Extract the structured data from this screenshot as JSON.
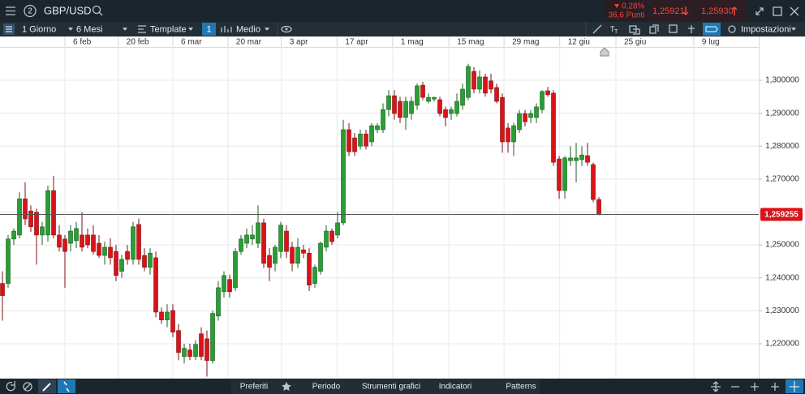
{
  "header": {
    "instrument_badge": "2",
    "symbol": "GBP/USD",
    "change_percent": "0,28%",
    "change_points": "36,6 Punti",
    "sell_price": "1,25921",
    "buy_price": "1,25930"
  },
  "toolbar": {
    "interval": "1 Giorno",
    "range": "6 Mesi",
    "template": "Template",
    "indicator_count": "1",
    "chart_style": "Medio",
    "settings": "Impostazioni"
  },
  "bottom_bar": {
    "tabs": [
      "Preferiti",
      "Periodo",
      "Strumenti grafici",
      "Indicatori",
      "Patterns"
    ]
  },
  "chart_data": {
    "type": "candlestick",
    "up_color": "#2a9d34",
    "down_color": "#d7141a",
    "open": [
      1.2383,
      1.2383,
      1.2518,
      1.253,
      1.264,
      1.2603,
      1.2599,
      1.253,
      1.253,
      1.2665,
      1.253,
      1.2518,
      1.2505,
      1.2513,
      1.253,
      1.253,
      1.253,
      1.2505,
      1.2468,
      1.2493,
      1.248,
      1.242,
      1.248,
      1.2456,
      1.2562,
      1.2468,
      1.2432,
      1.2461,
      1.2296,
      1.2272,
      1.2301,
      1.224,
      1.2161,
      1.2181,
      1.2161,
      1.223,
      1.2215,
      1.2149,
      1.2284,
      1.2358,
      1.2395,
      1.237,
      1.248,
      1.2505,
      1.2518,
      1.2505,
      1.2567,
      1.2468,
      1.2444,
      1.248,
      1.2542,
      1.2493,
      1.2444,
      1.2485,
      1.2475,
      1.2383,
      1.242,
      1.2493,
      1.2542,
      1.253,
      1.2567,
      1.285,
      1.2825,
      1.28,
      1.2837,
      1.2813,
      1.285,
      1.285,
      1.2911,
      1.2953,
      1.2936,
      1.2887,
      1.2899,
      1.2924,
      1.2985,
      1.2936,
      1.2943,
      1.2941,
      1.2911,
      1.2899,
      1.2899,
      1.2924,
      1.2948,
      1.3027,
      1.2973,
      1.301,
      1.2998,
      1.2978,
      1.2948,
      1.2855,
      1.2813,
      1.285,
      1.2899,
      1.2887,
      1.2887,
      1.2911,
      1.2968,
      1.2961,
      1.2761,
      1.2665,
      1.2756,
      1.2756,
      1.2759,
      1.2771,
      1.2744,
      1.2638
    ],
    "high": [
      1.242,
      1.253,
      1.255,
      1.266,
      1.269,
      1.262,
      1.261,
      1.257,
      1.268,
      1.271,
      1.256,
      1.253,
      1.256,
      1.257,
      1.26,
      1.255,
      1.256,
      1.253,
      1.251,
      1.252,
      1.25,
      1.247,
      1.25,
      1.257,
      1.258,
      1.249,
      1.249,
      1.248,
      1.231,
      1.232,
      1.232,
      1.226,
      1.22,
      1.22,
      1.221,
      1.225,
      1.224,
      1.23,
      1.239,
      1.242,
      1.241,
      1.249,
      1.253,
      1.255,
      1.256,
      1.262,
      1.258,
      1.249,
      1.25,
      1.257,
      1.256,
      1.251,
      1.252,
      1.25,
      1.249,
      1.244,
      1.251,
      1.256,
      1.255,
      1.26,
      1.288,
      1.287,
      1.284,
      1.285,
      1.285,
      1.287,
      1.287,
      1.293,
      1.297,
      1.297,
      1.295,
      1.295,
      1.295,
      1.299,
      1.2995,
      1.296,
      1.295,
      1.295,
      1.292,
      1.292,
      1.296,
      1.299,
      1.305,
      1.304,
      1.303,
      1.302,
      1.302,
      1.299,
      1.296,
      1.287,
      1.287,
      1.291,
      1.291,
      1.291,
      1.293,
      1.297,
      1.298,
      1.297,
      1.277,
      1.277,
      1.28,
      1.281,
      1.28,
      1.281,
      1.275,
      1.2645
    ],
    "low": [
      1.227,
      1.237,
      1.25,
      1.252,
      1.256,
      1.254,
      1.244,
      1.25,
      1.251,
      1.252,
      1.248,
      1.237,
      1.248,
      1.249,
      1.248,
      1.249,
      1.247,
      1.246,
      1.244,
      1.244,
      1.239,
      1.24,
      1.244,
      1.244,
      1.244,
      1.242,
      1.241,
      1.228,
      1.226,
      1.225,
      1.222,
      1.215,
      1.214,
      1.215,
      1.215,
      1.215,
      1.21,
      1.214,
      1.227,
      1.234,
      1.234,
      1.236,
      1.247,
      1.249,
      1.25,
      1.249,
      1.243,
      1.239,
      1.242,
      1.246,
      1.246,
      1.242,
      1.243,
      1.246,
      1.236,
      1.237,
      1.241,
      1.248,
      1.25,
      1.252,
      1.256,
      1.277,
      1.277,
      1.279,
      1.279,
      1.28,
      1.284,
      1.284,
      1.289,
      1.288,
      1.287,
      1.285,
      1.288,
      1.291,
      1.294,
      1.293,
      1.2935,
      1.289,
      1.286,
      1.288,
      1.289,
      1.291,
      1.294,
      1.296,
      1.296,
      1.295,
      1.296,
      1.293,
      1.278,
      1.278,
      1.277,
      1.284,
      1.286,
      1.287,
      1.287,
      1.29,
      1.295,
      1.274,
      1.264,
      1.264,
      1.274,
      1.269,
      1.274,
      1.274,
      1.263,
      1.259
    ],
    "close": [
      1.2346,
      1.2518,
      1.2542,
      1.264,
      1.2579,
      1.2555,
      1.253,
      1.2555,
      1.2665,
      1.253,
      1.2493,
      1.248,
      1.2542,
      1.255,
      1.2493,
      1.25,
      1.248,
      1.2468,
      1.2493,
      1.2461,
      1.2407,
      1.2456,
      1.2456,
      1.2555,
      1.2456,
      1.2432,
      1.2475,
      1.2296,
      1.2272,
      1.2296,
      1.2235,
      1.2173,
      1.2186,
      1.2161,
      1.2198,
      1.2161,
      1.2149,
      1.2292,
      1.237,
      1.2407,
      1.2358,
      1.248,
      1.2518,
      1.253,
      1.253,
      1.2567,
      1.2444,
      1.2432,
      1.2493,
      1.256,
      1.248,
      1.2444,
      1.2493,
      1.2475,
      1.2378,
      1.2432,
      1.2505,
      1.2542,
      1.251,
      1.2567,
      1.285,
      1.2783,
      1.2783,
      1.2837,
      1.28,
      1.2862,
      1.2862,
      1.2911,
      1.2953,
      1.2899,
      1.2887,
      1.2936,
      1.2936,
      1.2983,
      1.2948,
      1.2948,
      1.2948,
      1.2899,
      1.2887,
      1.2911,
      1.2936,
      1.2973,
      1.3042,
      1.2973,
      1.301,
      1.2961,
      1.2973,
      1.2936,
      1.2813,
      1.2813,
      1.2862,
      1.2899,
      1.2874,
      1.2899,
      1.2919,
      1.2966,
      1.2956,
      1.2751,
      1.2665,
      1.2764,
      1.2764,
      1.2764,
      1.2773,
      1.2751,
      1.2638,
      1.2593
    ],
    "price_line": {
      "value": 1.259255,
      "label": "1,259255"
    },
    "xlim": [
      -0.43,
      133.14
    ],
    "xticks": [
      {
        "value": 11,
        "label": "6 feb"
      },
      {
        "value": 20.4,
        "label": "20 feb"
      },
      {
        "value": 30,
        "label": "6 mar"
      },
      {
        "value": 39.7,
        "label": "20 mar"
      },
      {
        "value": 49.1,
        "label": "3 apr"
      },
      {
        "value": 58.9,
        "label": "17 apr"
      },
      {
        "value": 68.7,
        "label": "1 mag"
      },
      {
        "value": 78.6,
        "label": "15 mag"
      },
      {
        "value": 88.3,
        "label": "29 mag"
      },
      {
        "value": 98.1,
        "label": "12 giu"
      },
      {
        "value": 108,
        "label": "25 giu"
      },
      {
        "value": 121.7,
        "label": "9 lug"
      }
    ],
    "ylim": [
      1.2094,
      1.3101
    ],
    "yticks": [
      {
        "value": 1.22,
        "label": "1,220000"
      },
      {
        "value": 1.23,
        "label": "1,230000"
      },
      {
        "value": 1.24,
        "label": "1,240000"
      },
      {
        "value": 1.25,
        "label": "1,250000"
      },
      {
        "value": 1.26,
        "label": "1,260000"
      },
      {
        "value": 1.27,
        "label": "1,270000"
      },
      {
        "value": 1.28,
        "label": "1,280000"
      },
      {
        "value": 1.29,
        "label": "1,290000"
      },
      {
        "value": 1.3,
        "label": "1,300000"
      }
    ],
    "grid": true
  }
}
